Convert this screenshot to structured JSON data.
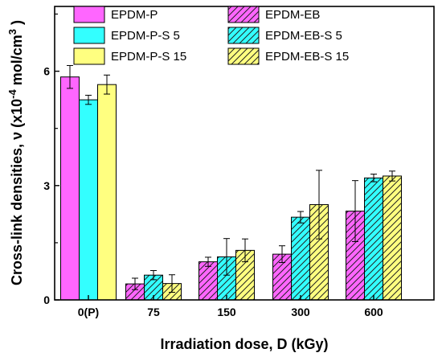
{
  "chart_data": {
    "type": "bar",
    "categories": [
      "0(P)",
      "75",
      "150",
      "300",
      "600"
    ],
    "xlabel": "Irradiation dose, D (kGy)",
    "ylabel_main": "Cross-link densities, ν (x10",
    "ylabel_exp1": "-4",
    "ylabel_mid": " mol/cm",
    "ylabel_exp2": "3",
    "ylabel_end": " )",
    "ylim": [
      0,
      7.7
    ],
    "yticks": [
      0,
      3,
      6
    ],
    "series": [
      {
        "name": "EPDM-P",
        "color": "#ff66ff",
        "hatched": false,
        "values": [
          5.85,
          null,
          null,
          null,
          null
        ],
        "errors": [
          0.3,
          null,
          null,
          null,
          null
        ]
      },
      {
        "name": "EPDM-P-S 5",
        "color": "#33ffff",
        "hatched": false,
        "values": [
          5.25,
          null,
          null,
          null,
          null
        ],
        "errors": [
          0.12,
          null,
          null,
          null,
          null
        ]
      },
      {
        "name": "EPDM-P-S 15",
        "color": "#ffff80",
        "hatched": false,
        "values": [
          5.65,
          null,
          null,
          null,
          null
        ],
        "errors": [
          0.25,
          null,
          null,
          null,
          null
        ]
      },
      {
        "name": "EPDM-EB",
        "color": "#ff66ff",
        "hatched": true,
        "values": [
          null,
          0.42,
          1.0,
          1.2,
          2.33
        ],
        "errors": [
          null,
          0.15,
          0.12,
          0.22,
          0.8
        ]
      },
      {
        "name": "EPDM-EB-S 5",
        "color": "#33ffff",
        "hatched": true,
        "values": [
          null,
          0.65,
          1.13,
          2.17,
          3.2
        ],
        "errors": [
          null,
          0.12,
          0.48,
          0.15,
          0.1
        ]
      },
      {
        "name": "EPDM-EB-S 15",
        "color": "#ffff80",
        "hatched": true,
        "values": [
          null,
          0.43,
          1.3,
          2.5,
          3.25
        ],
        "errors": [
          null,
          0.23,
          0.3,
          0.9,
          0.13
        ]
      }
    ],
    "legend": {
      "left": [
        "EPDM-P",
        "EPDM-P-S 5",
        "EPDM-P-S 15"
      ],
      "right": [
        "EPDM-EB",
        "EPDM-EB-S 5",
        "EPDM-EB-S 15"
      ]
    }
  }
}
